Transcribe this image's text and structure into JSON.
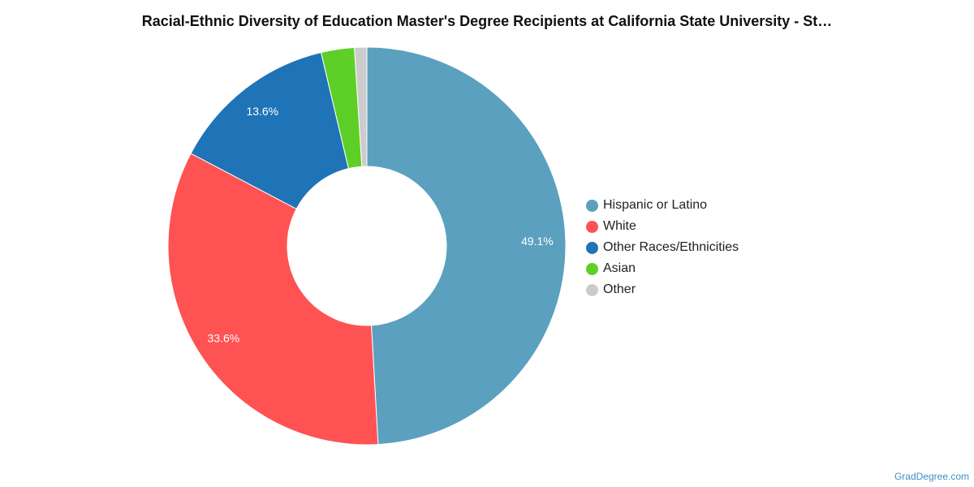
{
  "chart_data": {
    "type": "pie",
    "title": "Racial-Ethnic Diversity of Education Master's Degree Recipients at California State University - St…",
    "categories": [
      "Hispanic or Latino",
      "White",
      "Other Races/Ethnicities",
      "Asian",
      "Other"
    ],
    "values": [
      49.1,
      33.6,
      13.6,
      2.7,
      1.0
    ],
    "data_labels": [
      "49.1%",
      "33.6%",
      "13.6%",
      "",
      ""
    ],
    "colors": [
      "#5ba1bf",
      "#ff5252",
      "#1f73b7",
      "#5ecf26",
      "#cccccc"
    ],
    "donut": true,
    "legend_position": "right"
  },
  "watermark": "GradDegree.com"
}
